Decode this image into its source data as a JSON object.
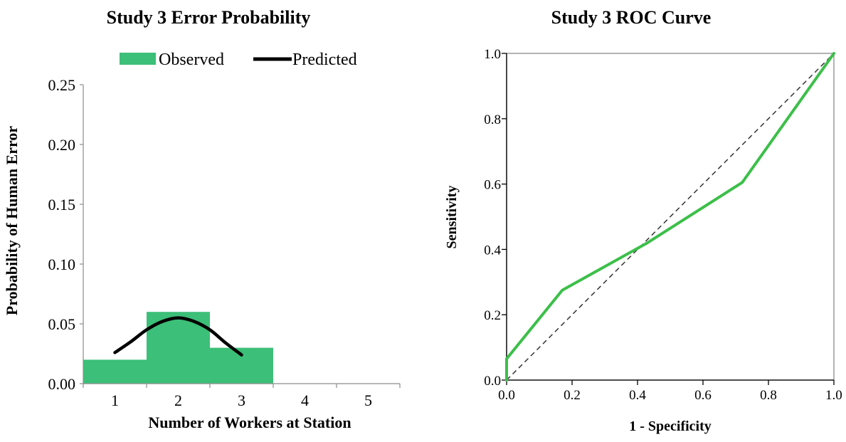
{
  "chart_data": [
    {
      "type": "bar",
      "title": "Study 3 Error Probability",
      "xlabel": "Number of Workers at Station",
      "ylabel": "Probability of Human Error",
      "categories": [
        "1",
        "2",
        "3",
        "4",
        "5"
      ],
      "ylim": [
        0,
        0.25
      ],
      "yticks": [
        "0.00",
        "0.05",
        "0.10",
        "0.15",
        "0.20",
        "0.25"
      ],
      "grid": false,
      "legend_position": "top",
      "colors": {
        "observed": "#3cbf78",
        "predicted": "#000000"
      },
      "series": [
        {
          "name": "Observed",
          "kind": "bar",
          "values": [
            0.02,
            0.06,
            0.03,
            0,
            0
          ]
        },
        {
          "name": "Predicted",
          "kind": "line",
          "x": [
            1,
            1.25,
            1.5,
            1.75,
            2,
            2.25,
            2.5,
            2.75,
            3
          ],
          "values": [
            0.026,
            0.035,
            0.045,
            0.052,
            0.055,
            0.052,
            0.045,
            0.034,
            0.024
          ]
        }
      ]
    },
    {
      "type": "line",
      "title": "Study 3 ROC Curve",
      "xlabel": "1 - Specificity",
      "ylabel": "Sensitivity",
      "xlim": [
        0,
        1
      ],
      "ylim": [
        0,
        1
      ],
      "xticks": [
        "0.0",
        "0.2",
        "0.4",
        "0.6",
        "0.8",
        "1.0"
      ],
      "yticks": [
        "0.0",
        "0.2",
        "0.4",
        "0.6",
        "0.8",
        "1.0"
      ],
      "grid": false,
      "colors": {
        "roc": "#3cbf49",
        "reference": "#333333"
      },
      "series": [
        {
          "kind": "roc",
          "x": [
            0,
            0,
            0.17,
            0.43,
            0.72,
            1.0
          ],
          "y": [
            0,
            0.065,
            0.275,
            0.42,
            0.605,
            1.0
          ]
        },
        {
          "kind": "reference",
          "style": "dashed",
          "x": [
            0,
            1
          ],
          "y": [
            0,
            1
          ]
        }
      ]
    }
  ]
}
